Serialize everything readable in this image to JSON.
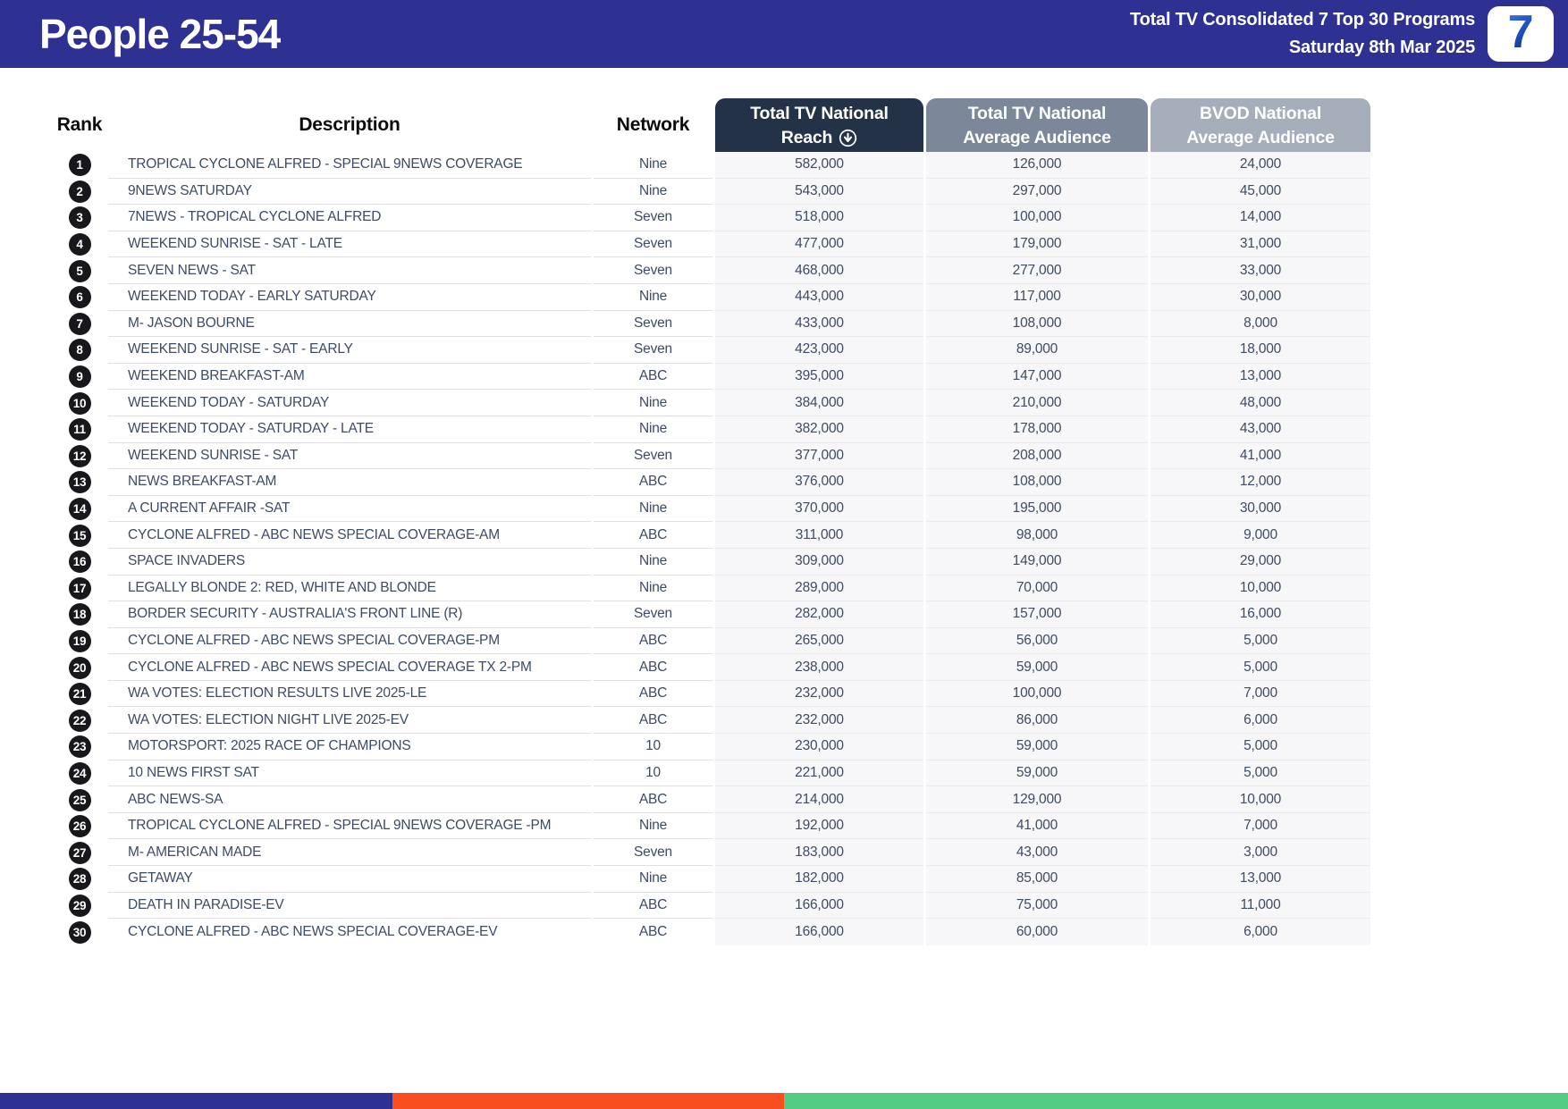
{
  "header": {
    "title": "People 25-54",
    "report_title": "Total TV Consolidated 7 Top 30 Programs",
    "report_date": "Saturday 8th Mar 2025",
    "logo": "7"
  },
  "columns": {
    "rank": "Rank",
    "description": "Description",
    "network": "Network",
    "reach_line1": "Total TV National",
    "reach_line2": "Reach",
    "avg_line1": "Total TV National",
    "avg_line2": "Average Audience",
    "bvod_line1": "BVOD National",
    "bvod_line2": "Average Audience"
  },
  "icons": {
    "sort_descending": "circled-down-arrow",
    "seven_logo": "seven-network-7"
  },
  "colors": {
    "header_bar": "#2e3192",
    "reach_header_bg": "#243247",
    "avg_header_bg": "#7c8899",
    "bvod_header_bg": "#a7aebb",
    "rank_badge_bg": "#18181c",
    "row_text": "#3d4b63",
    "numeric_cell_bg": "#f7f7f9"
  },
  "rows": [
    {
      "rank": "1",
      "description": "TROPICAL CYCLONE ALFRED - SPECIAL 9NEWS COVERAGE",
      "network": "Nine",
      "reach": "582,000",
      "avg": "126,000",
      "bvod": "24,000"
    },
    {
      "rank": "2",
      "description": "9NEWS SATURDAY",
      "network": "Nine",
      "reach": "543,000",
      "avg": "297,000",
      "bvod": "45,000"
    },
    {
      "rank": "3",
      "description": "7NEWS - TROPICAL CYCLONE ALFRED",
      "network": "Seven",
      "reach": "518,000",
      "avg": "100,000",
      "bvod": "14,000"
    },
    {
      "rank": "4",
      "description": "WEEKEND SUNRISE - SAT - LATE",
      "network": "Seven",
      "reach": "477,000",
      "avg": "179,000",
      "bvod": "31,000"
    },
    {
      "rank": "5",
      "description": "SEVEN NEWS - SAT",
      "network": "Seven",
      "reach": "468,000",
      "avg": "277,000",
      "bvod": "33,000"
    },
    {
      "rank": "6",
      "description": "WEEKEND TODAY - EARLY SATURDAY",
      "network": "Nine",
      "reach": "443,000",
      "avg": "117,000",
      "bvod": "30,000"
    },
    {
      "rank": "7",
      "description": "M- JASON BOURNE",
      "network": "Seven",
      "reach": "433,000",
      "avg": "108,000",
      "bvod": "8,000"
    },
    {
      "rank": "8",
      "description": "WEEKEND SUNRISE - SAT - EARLY",
      "network": "Seven",
      "reach": "423,000",
      "avg": "89,000",
      "bvod": "18,000"
    },
    {
      "rank": "9",
      "description": "WEEKEND BREAKFAST-AM",
      "network": "ABC",
      "reach": "395,000",
      "avg": "147,000",
      "bvod": "13,000"
    },
    {
      "rank": "10",
      "description": "WEEKEND TODAY - SATURDAY",
      "network": "Nine",
      "reach": "384,000",
      "avg": "210,000",
      "bvod": "48,000"
    },
    {
      "rank": "11",
      "description": "WEEKEND TODAY - SATURDAY - LATE",
      "network": "Nine",
      "reach": "382,000",
      "avg": "178,000",
      "bvod": "43,000"
    },
    {
      "rank": "12",
      "description": "WEEKEND SUNRISE - SAT",
      "network": "Seven",
      "reach": "377,000",
      "avg": "208,000",
      "bvod": "41,000"
    },
    {
      "rank": "13",
      "description": "NEWS BREAKFAST-AM",
      "network": "ABC",
      "reach": "376,000",
      "avg": "108,000",
      "bvod": "12,000"
    },
    {
      "rank": "14",
      "description": "A CURRENT AFFAIR -SAT",
      "network": "Nine",
      "reach": "370,000",
      "avg": "195,000",
      "bvod": "30,000"
    },
    {
      "rank": "15",
      "description": "CYCLONE ALFRED - ABC NEWS SPECIAL COVERAGE-AM",
      "network": "ABC",
      "reach": "311,000",
      "avg": "98,000",
      "bvod": "9,000"
    },
    {
      "rank": "16",
      "description": "SPACE INVADERS",
      "network": "Nine",
      "reach": "309,000",
      "avg": "149,000",
      "bvod": "29,000"
    },
    {
      "rank": "17",
      "description": "LEGALLY BLONDE 2: RED, WHITE AND BLONDE",
      "network": "Nine",
      "reach": "289,000",
      "avg": "70,000",
      "bvod": "10,000"
    },
    {
      "rank": "18",
      "description": "BORDER SECURITY - AUSTRALIA'S FRONT LINE (R)",
      "network": "Seven",
      "reach": "282,000",
      "avg": "157,000",
      "bvod": "16,000"
    },
    {
      "rank": "19",
      "description": "CYCLONE ALFRED - ABC NEWS SPECIAL COVERAGE-PM",
      "network": "ABC",
      "reach": "265,000",
      "avg": "56,000",
      "bvod": "5,000"
    },
    {
      "rank": "20",
      "description": "CYCLONE ALFRED - ABC NEWS SPECIAL COVERAGE TX 2-PM",
      "network": "ABC",
      "reach": "238,000",
      "avg": "59,000",
      "bvod": "5,000"
    },
    {
      "rank": "21",
      "description": "WA VOTES: ELECTION RESULTS LIVE 2025-LE",
      "network": "ABC",
      "reach": "232,000",
      "avg": "100,000",
      "bvod": "7,000"
    },
    {
      "rank": "22",
      "description": "WA VOTES: ELECTION NIGHT LIVE 2025-EV",
      "network": "ABC",
      "reach": "232,000",
      "avg": "86,000",
      "bvod": "6,000"
    },
    {
      "rank": "23",
      "description": "MOTORSPORT: 2025 RACE OF CHAMPIONS",
      "network": "10",
      "reach": "230,000",
      "avg": "59,000",
      "bvod": "5,000"
    },
    {
      "rank": "24",
      "description": "10 NEWS FIRST SAT",
      "network": "10",
      "reach": "221,000",
      "avg": "59,000",
      "bvod": "5,000"
    },
    {
      "rank": "25",
      "description": "ABC NEWS-SA",
      "network": "ABC",
      "reach": "214,000",
      "avg": "129,000",
      "bvod": "10,000"
    },
    {
      "rank": "26",
      "description": "TROPICAL CYCLONE ALFRED - SPECIAL 9NEWS COVERAGE -PM",
      "network": "Nine",
      "reach": "192,000",
      "avg": "41,000",
      "bvod": "7,000"
    },
    {
      "rank": "27",
      "description": "M- AMERICAN MADE",
      "network": "Seven",
      "reach": "183,000",
      "avg": "43,000",
      "bvod": "3,000"
    },
    {
      "rank": "28",
      "description": "GETAWAY",
      "network": "Nine",
      "reach": "182,000",
      "avg": "85,000",
      "bvod": "13,000"
    },
    {
      "rank": "29",
      "description": "DEATH IN PARADISE-EV",
      "network": "ABC",
      "reach": "166,000",
      "avg": "75,000",
      "bvod": "11,000"
    },
    {
      "rank": "30",
      "description": "CYCLONE ALFRED - ABC NEWS SPECIAL COVERAGE-EV",
      "network": "ABC",
      "reach": "166,000",
      "avg": "60,000",
      "bvod": "6,000"
    }
  ],
  "footer": {
    "segments": [
      {
        "color": "#2e3192",
        "width_pct": 25
      },
      {
        "color": "#f94e20",
        "width_pct": 25
      },
      {
        "color": "#54cc83",
        "width_pct": 50
      }
    ]
  }
}
